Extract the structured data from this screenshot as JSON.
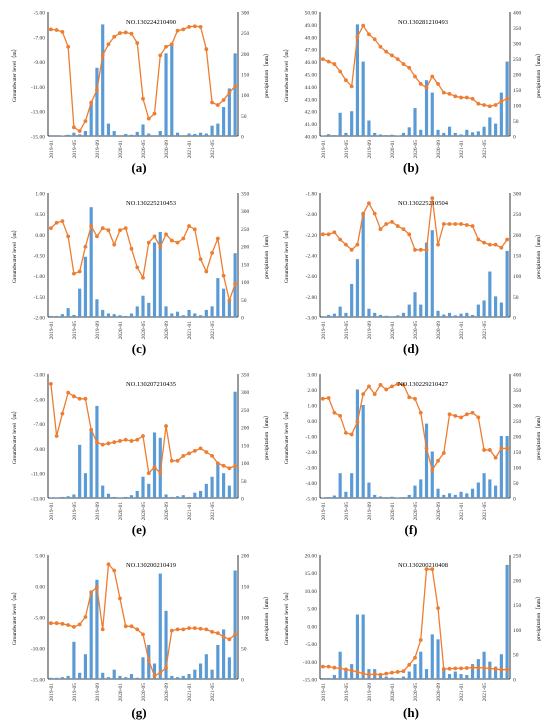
{
  "colors": {
    "bar": "#5b9bd5",
    "line": "#ed7d31",
    "axis": "#000000",
    "tick": "#333333"
  },
  "chart_data": [
    {
      "type": "bar+line",
      "title": "NO.130224210490",
      "label": "(a)",
      "ylabel_left": "Groundwater level（m）",
      "ylabel_right": "precipitation（mm）",
      "ylim_left": [
        -15,
        -5
      ],
      "yticks_left": [
        "-5.00",
        "-7.00",
        "-9.00",
        "-11.00",
        "-13.00",
        "-15.00"
      ],
      "ylim_right": [
        0,
        300
      ],
      "yticks_right": [
        "300",
        "250",
        "200",
        "150",
        "100",
        "50",
        "0"
      ],
      "xticks": [
        "2019-01",
        "2019-05",
        "2019-09",
        "2020-01",
        "2020-05",
        "2020-09",
        "2021-01",
        "2021-05"
      ],
      "series": [
        {
          "kind": "bar",
          "values": [
            0,
            2,
            1,
            3,
            8,
            4,
            12,
            80,
            165,
            270,
            30,
            12,
            2,
            5,
            3,
            10,
            28,
            6,
            2,
            12,
            200,
            225,
            8,
            2,
            6,
            5,
            8,
            6,
            25,
            30,
            70,
            115,
            200
          ]
        },
        {
          "kind": "line",
          "values": [
            -6.4,
            -6.45,
            -6.6,
            -7.8,
            -14.3,
            -14.6,
            -13.8,
            -12.3,
            -11.3,
            -8.5,
            -7.6,
            -7.0,
            -6.7,
            -6.65,
            -6.75,
            -7.5,
            -12.0,
            -13.6,
            -13.2,
            -8.5,
            -7.8,
            -7.6,
            -6.5,
            -6.4,
            -6.2,
            -6.15,
            -6.2,
            -8.0,
            -12.3,
            -12.5,
            -12.1,
            -11.5,
            -11.0
          ]
        }
      ]
    },
    {
      "type": "bar+line",
      "title": "NO.130281210493",
      "label": "(b)",
      "ylabel_left": "Groundwater level（m）",
      "ylabel_right": "precipitation（mm）",
      "ylim_left": [
        40,
        50
      ],
      "yticks_left": [
        "50.00",
        "49.00",
        "48.00",
        "47.00",
        "46.00",
        "45.00",
        "44.00",
        "43.00",
        "42.00",
        "41.00",
        "40.00"
      ],
      "ylim_right": [
        0,
        400
      ],
      "yticks_right": [
        "400",
        "350",
        "300",
        "250",
        "200",
        "150",
        "100",
        "50",
        "0"
      ],
      "xticks": [
        "2019-01",
        "2019-05",
        "2019-09",
        "2020-01",
        "2020-05",
        "2020-09",
        "2021-01",
        "2021-05"
      ],
      "series": [
        {
          "kind": "bar",
          "values": [
            2,
            6,
            3,
            75,
            10,
            80,
            360,
            240,
            50,
            10,
            5,
            3,
            4,
            2,
            10,
            28,
            90,
            20,
            180,
            140,
            20,
            10,
            30,
            10,
            5,
            20,
            12,
            15,
            30,
            60,
            40,
            140,
            240
          ]
        },
        {
          "kind": "line",
          "values": [
            46.2,
            46.0,
            45.8,
            45.2,
            44.5,
            44.0,
            48.0,
            48.9,
            48.2,
            47.8,
            47.2,
            46.8,
            46.5,
            46.2,
            45.8,
            45.5,
            44.8,
            44.2,
            43.9,
            44.8,
            44.2,
            43.5,
            43.4,
            43.2,
            43.1,
            43.1,
            43.0,
            42.6,
            42.5,
            42.4,
            42.5,
            42.8,
            43.0
          ]
        }
      ]
    },
    {
      "type": "bar+line",
      "title": "NO.130225210453",
      "label": "(c)",
      "ylabel_left": "Groundwater level（m）",
      "ylabel_right": "precipitation（mm）",
      "ylim_left": [
        -2,
        1
      ],
      "yticks_left": [
        "1.00",
        "0.50",
        "0.00",
        "-0.50",
        "-1.00",
        "-1.50",
        "-2.00"
      ],
      "ylim_right": [
        0,
        350
      ],
      "yticks_right": [
        "350",
        "300",
        "250",
        "200",
        "150",
        "100",
        "50",
        "0"
      ],
      "xticks": [
        "2019-01",
        "2019-05",
        "2019-09",
        "2020-01",
        "2020-05",
        "2020-09",
        "2021-01",
        "2021-05"
      ],
      "series": [
        {
          "kind": "bar",
          "values": [
            3,
            3,
            8,
            25,
            6,
            80,
            170,
            310,
            50,
            20,
            10,
            8,
            5,
            3,
            10,
            30,
            60,
            40,
            210,
            240,
            30,
            10,
            15,
            5,
            20,
            10,
            5,
            20,
            30,
            110,
            80,
            50,
            180
          ]
        },
        {
          "kind": "line",
          "values": [
            0.15,
            0.28,
            0.32,
            -0.05,
            -0.95,
            -0.9,
            -0.3,
            0.2,
            -0.05,
            0.15,
            0.1,
            -0.25,
            0.1,
            0.15,
            -0.35,
            -0.8,
            -1.05,
            -0.2,
            -0.05,
            -0.3,
            0.0,
            -0.15,
            -0.2,
            -0.1,
            0.2,
            0.12,
            -0.6,
            -0.9,
            -0.45,
            -0.1,
            -1.0,
            -1.6,
            -1.2
          ]
        }
      ]
    },
    {
      "type": "bar+line",
      "title": "NO.130225210504",
      "label": "(d)",
      "ylabel_left": "Groundwater level（m）",
      "ylabel_right": "precipitation（mm）",
      "ylim_left": [
        -3,
        -1.8
      ],
      "yticks_left": [
        "-1.80",
        "-2.00",
        "-2.20",
        "-2.40",
        "-2.60",
        "-2.80",
        "-3.00"
      ],
      "ylim_right": [
        0,
        300
      ],
      "yticks_right": [
        "300",
        "250",
        "200",
        "150",
        "100",
        "50",
        "0"
      ],
      "xticks": [
        "2019-01",
        "2019-05",
        "2019-09",
        "2020-01",
        "2020-05",
        "2020-09",
        "2021-01",
        "2021-05"
      ],
      "series": [
        {
          "kind": "bar",
          "values": [
            2,
            5,
            8,
            25,
            10,
            80,
            140,
            250,
            20,
            10,
            5,
            3,
            2,
            4,
            10,
            30,
            60,
            30,
            180,
            210,
            15,
            6,
            10,
            4,
            8,
            10,
            5,
            30,
            40,
            110,
            50,
            35,
            160
          ]
        },
        {
          "kind": "line",
          "values": [
            -2.2,
            -2.2,
            -2.18,
            -2.25,
            -2.3,
            -2.35,
            -2.3,
            -2.0,
            -1.9,
            -2.0,
            -2.15,
            -2.1,
            -2.08,
            -2.12,
            -2.15,
            -2.2,
            -2.35,
            -2.35,
            -2.35,
            -1.85,
            -2.3,
            -2.1,
            -2.1,
            -2.1,
            -2.1,
            -2.11,
            -2.12,
            -2.25,
            -2.28,
            -2.3,
            -2.3,
            -2.33,
            -2.25
          ]
        }
      ]
    },
    {
      "type": "bar+line",
      "title": "NO.130207210435",
      "label": "(e)",
      "ylabel_left": "Groundwater level（m）",
      "ylabel_right": "precipitation（mm）",
      "ylim_left": [
        -13,
        -3
      ],
      "yticks_left": [
        "-3.00",
        "-5.00",
        "-7.00",
        "-9.00",
        "-11.00",
        "-13.00"
      ],
      "ylim_right": [
        0,
        350
      ],
      "yticks_right": [
        "350",
        "300",
        "250",
        "200",
        "150",
        "100",
        "50",
        "0"
      ],
      "xticks": [
        "2019-01",
        "2019-05",
        "2019-09",
        "2020-01",
        "2020-05",
        "2020-09",
        "2021-01",
        "2021-05"
      ],
      "series": [
        {
          "kind": "bar",
          "values": [
            2,
            2,
            3,
            5,
            10,
            150,
            70,
            195,
            260,
            35,
            12,
            3,
            2,
            3,
            8,
            20,
            60,
            40,
            185,
            170,
            10,
            3,
            5,
            8,
            3,
            15,
            20,
            40,
            60,
            100,
            70,
            35,
            300
          ]
        },
        {
          "kind": "line",
          "values": [
            -3.8,
            -8.0,
            -6.2,
            -4.5,
            -4.8,
            -5.0,
            -5.0,
            -7.5,
            -8.5,
            -8.7,
            -8.6,
            -8.5,
            -8.4,
            -8.3,
            -8.4,
            -8.3,
            -8.0,
            -11.0,
            -10.5,
            -11.0,
            -7.2,
            -10.0,
            -10.0,
            -9.6,
            -9.4,
            -9.2,
            -9.0,
            -9.3,
            -9.6,
            -10.2,
            -10.4,
            -10.6,
            -10.4
          ]
        }
      ]
    },
    {
      "type": "bar+line",
      "title": "NO.130229210427",
      "label": "(f)",
      "ylabel_left": "Groundwater level（m）",
      "ylabel_right": "precipitation（mm）",
      "ylim_left": [
        -5,
        3
      ],
      "yticks_left": [
        "3.00",
        "2.00",
        "1.00",
        "0.00",
        "-1.00",
        "-2.00",
        "-3.00",
        "-4.00",
        "-5.00"
      ],
      "ylim_right": [
        0,
        400
      ],
      "yticks_right": [
        "400",
        "350",
        "300",
        "250",
        "200",
        "150",
        "100",
        "50",
        "0"
      ],
      "xticks": [
        "2019-01",
        "2019-05",
        "2019-09",
        "2020-01",
        "2020-05",
        "2020-09",
        "2021-01",
        "2021-05"
      ],
      "series": [
        {
          "kind": "bar",
          "values": [
            2,
            3,
            8,
            80,
            20,
            80,
            350,
            300,
            50,
            10,
            5,
            3,
            4,
            2,
            3,
            10,
            40,
            60,
            240,
            150,
            30,
            10,
            15,
            10,
            20,
            15,
            30,
            50,
            80,
            60,
            40,
            200,
            200
          ]
        },
        {
          "kind": "line",
          "values": [
            1.4,
            1.45,
            0.5,
            0.3,
            -0.8,
            -0.9,
            -0.1,
            1.7,
            2.2,
            1.7,
            2.3,
            2.0,
            2.2,
            2.35,
            2.3,
            1.5,
            1.4,
            0.5,
            -1.8,
            -3.2,
            -2.6,
            -2.1,
            0.4,
            0.3,
            0.2,
            0.4,
            0.5,
            0.2,
            -1.9,
            -1.9,
            -2.4,
            -1.8,
            -1.8
          ]
        }
      ]
    },
    {
      "type": "bar+line",
      "title": "NO.130200210419",
      "label": "(g)",
      "ylabel_left": "Groundwater level（m）",
      "ylabel_right": "precipitation（mm）",
      "ylim_left": [
        -15,
        5
      ],
      "yticks_left": [
        "5.00",
        "0.00",
        "-5.00",
        "-10.00",
        "-15.00"
      ],
      "ylim_right": [
        0,
        200
      ],
      "yticks_right": [
        "200",
        "150",
        "100",
        "50",
        "0"
      ],
      "xticks": [
        "2019-01",
        "2019-05",
        "2019-09",
        "2020-01",
        "2020-05",
        "2020-09",
        "2021-01",
        "2021-05"
      ],
      "series": [
        {
          "kind": "bar",
          "values": [
            2,
            2,
            3,
            5,
            60,
            10,
            40,
            140,
            160,
            10,
            3,
            15,
            5,
            3,
            8,
            2,
            35,
            55,
            25,
            170,
            110,
            5,
            3,
            5,
            8,
            15,
            25,
            40,
            15,
            55,
            80,
            35,
            175
          ]
        },
        {
          "kind": "line",
          "values": [
            -6.0,
            -6.0,
            -6.1,
            -6.3,
            -6.6,
            -6.2,
            -5.0,
            -1.0,
            -0.2,
            -7.0,
            3.5,
            2.5,
            -2.0,
            -6.5,
            -6.5,
            -7.0,
            -7.8,
            -12.0,
            -14.5,
            -14.0,
            -13.2,
            -7.2,
            -7.0,
            -7.0,
            -6.8,
            -6.8,
            -6.9,
            -7.0,
            -7.4,
            -7.6,
            -8.2,
            -8.6,
            -7.8
          ]
        }
      ]
    },
    {
      "type": "bar+line",
      "title": "NO.130200210408",
      "label": "(h)",
      "ylabel_left": "Groundwater level（m）",
      "ylabel_right": "precipitation（mm）",
      "ylim_left": [
        -15,
        20
      ],
      "yticks_left": [
        "20.00",
        "15.00",
        "10.00",
        "5.00",
        "0.00",
        "-5.00",
        "-10.00",
        "-15.00"
      ],
      "ylim_right": [
        0,
        250
      ],
      "yticks_right": [
        "250",
        "200",
        "150",
        "100",
        "50",
        "0"
      ],
      "xticks": [
        "2019-01",
        "2019-05",
        "2019-09",
        "2020-01",
        "2020-05",
        "2020-09",
        "2021-01",
        "2021-05"
      ],
      "series": [
        {
          "kind": "bar",
          "values": [
            2,
            2,
            8,
            55,
            20,
            30,
            130,
            130,
            20,
            20,
            8,
            5,
            3,
            2,
            5,
            15,
            30,
            55,
            20,
            90,
            80,
            20,
            10,
            15,
            10,
            8,
            30,
            40,
            55,
            35,
            25,
            50,
            230
          ]
        },
        {
          "kind": "line",
          "values": [
            -11.5,
            -11.5,
            -11.8,
            -12.0,
            -12.3,
            -12.6,
            -13.0,
            -13.5,
            -13.8,
            -13.6,
            -13.8,
            -13.5,
            -13.2,
            -13.0,
            -12.8,
            -11.0,
            -9.0,
            -4.0,
            16.0,
            16.0,
            5.0,
            -12.2,
            -12.1,
            -12.0,
            -12.0,
            -11.9,
            -11.8,
            -11.8,
            -11.9,
            -12.0,
            -12.2,
            -12.4,
            -12.3
          ]
        }
      ]
    }
  ]
}
